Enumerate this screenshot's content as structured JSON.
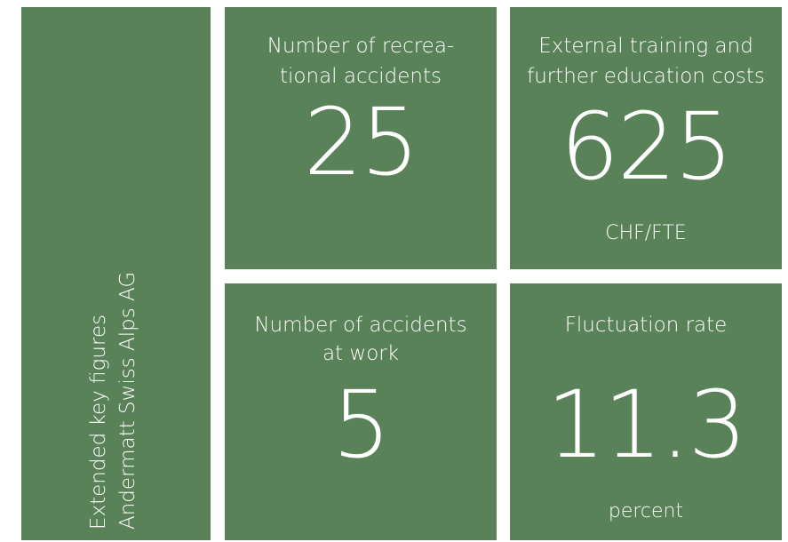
{
  "sidebar": {
    "lines": [
      "Extended key figures",
      "Andermatt Swiss Alps AG"
    ]
  },
  "tiles": [
    {
      "title_lines": [
        "Number of recrea-",
        "tional accidents"
      ],
      "value": 25
    },
    {
      "title_lines": [
        "External training and",
        "further education costs"
      ],
      "value": 625,
      "unit": "CHF/FTE"
    },
    {
      "title_lines": [
        "Number of accidents",
        "at work"
      ],
      "value": 5
    },
    {
      "title_lines": [
        "Fluctuation rate"
      ],
      "value": 11.3,
      "unit": "percent"
    }
  ]
}
